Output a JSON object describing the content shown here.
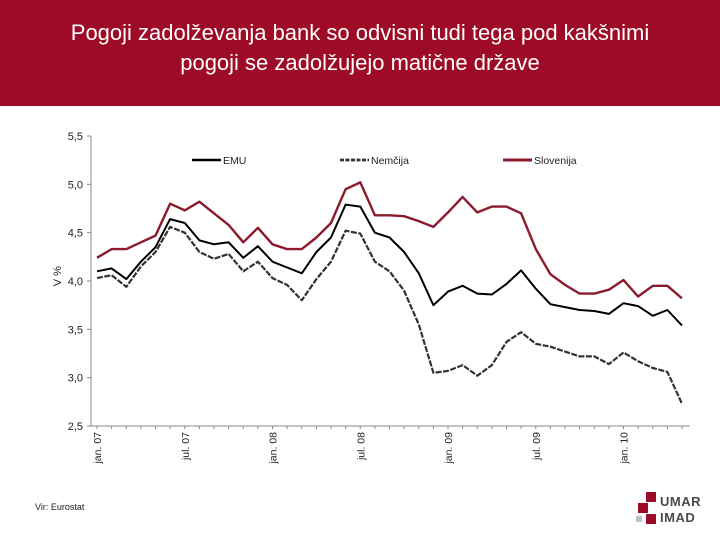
{
  "header": {
    "title": "Pogoji zadolževanja bank so odvisni tudi tega pod kakšnimi\npogoji se zadolžujejo matične države"
  },
  "colors": {
    "title_bg": "#9d0b26",
    "emu": "#000000",
    "nemcija": "#333333",
    "slovenija": "#8b1a2c"
  },
  "chart_data": {
    "type": "line",
    "title": "",
    "ylabel": "V %",
    "xlabel": "",
    "ylim": [
      2.5,
      5.5
    ],
    "y_ticks": [
      "2,5",
      "3,0",
      "3,5",
      "4,0",
      "4,5",
      "5,0",
      "5,5"
    ],
    "y_tick_values": [
      2.5,
      3.0,
      3.5,
      4.0,
      4.5,
      5.0,
      5.5
    ],
    "x_tick_labels": [
      "jan. 07",
      "jul. 07",
      "jan. 08",
      "jul. 08",
      "jan. 09",
      "jul. 09",
      "jan. 10"
    ],
    "x_tick_index": [
      0,
      6,
      12,
      18,
      24,
      30,
      36
    ],
    "grid": false,
    "legend_position": "top",
    "series": [
      {
        "name": "EMU",
        "style": "solid",
        "values": [
          4.1,
          4.13,
          4.02,
          4.2,
          4.35,
          4.64,
          4.6,
          4.42,
          4.38,
          4.4,
          4.24,
          4.36,
          4.2,
          4.14,
          4.08,
          4.3,
          4.45,
          4.79,
          4.77,
          4.5,
          4.45,
          4.3,
          4.08,
          3.75,
          3.89,
          3.95,
          3.87,
          3.86,
          3.97,
          4.11,
          3.92,
          3.76,
          3.73,
          3.7,
          3.69,
          3.66,
          3.77,
          3.74,
          3.64,
          3.7,
          3.54
        ]
      },
      {
        "name": "Nemčija",
        "style": "dashed",
        "values": [
          4.03,
          4.06,
          3.94,
          4.15,
          4.3,
          4.56,
          4.5,
          4.3,
          4.23,
          4.28,
          4.1,
          4.2,
          4.03,
          3.96,
          3.8,
          4.02,
          4.2,
          4.52,
          4.49,
          4.2,
          4.1,
          3.9,
          3.55,
          3.05,
          3.07,
          3.13,
          3.02,
          3.13,
          3.37,
          3.47,
          3.35,
          3.32,
          3.27,
          3.22,
          3.22,
          3.14,
          3.26,
          3.17,
          3.1,
          3.06,
          2.73
        ]
      },
      {
        "name": "Slovenija",
        "style": "solid",
        "values": [
          4.24,
          4.33,
          4.33,
          4.4,
          4.47,
          4.8,
          4.73,
          4.82,
          4.7,
          4.58,
          4.4,
          4.55,
          4.38,
          4.33,
          4.33,
          4.45,
          4.6,
          4.95,
          5.02,
          4.68,
          4.68,
          4.67,
          4.62,
          4.56,
          4.71,
          4.87,
          4.71,
          4.77,
          4.77,
          4.7,
          4.33,
          4.07,
          3.96,
          3.87,
          3.87,
          3.91,
          4.01,
          3.84,
          3.95,
          3.95,
          3.82
        ]
      }
    ]
  },
  "footer": {
    "source": "Vir: Eurostat",
    "logo_line1": "UMAR",
    "logo_line2": "IMAD"
  }
}
